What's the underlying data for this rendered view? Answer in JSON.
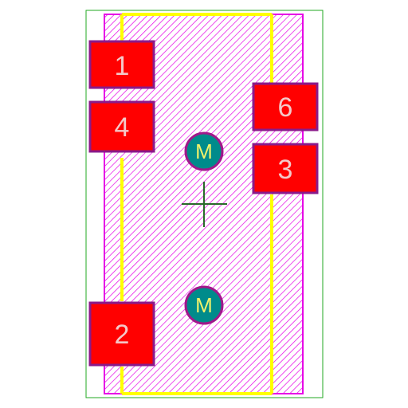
{
  "footprint": {
    "pads": [
      {
        "number": "1"
      },
      {
        "number": "4"
      },
      {
        "number": "6"
      },
      {
        "number": "3"
      },
      {
        "number": "2"
      }
    ],
    "mounting_holes": [
      {
        "label": "M"
      },
      {
        "label": "M"
      }
    ]
  },
  "colors": {
    "board_outline": "#22aa22",
    "courtyard": "#e600e6",
    "hatch": "#e600e6",
    "silkscreen": "#ffff00",
    "pad_fill": "#ff0000",
    "pad_border": "#8a1a8a",
    "pad_text": "#f4c8c8",
    "hole_fill": "#008b8b",
    "hole_border": "#a0198a",
    "hole_text": "#f2f26a",
    "origin_marker": "#2a6a2a"
  }
}
